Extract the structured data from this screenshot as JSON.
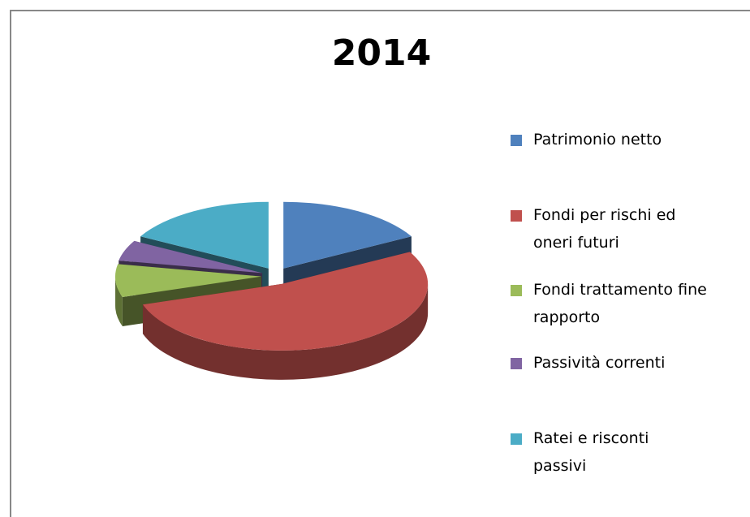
{
  "chart_data": {
    "type": "pie",
    "title": "2014",
    "categories": [
      "Patrimonio netto",
      "Fondi per rischi ed oneri futuri",
      "Fondi trattamento fine rapporto",
      "Passività correnti",
      "Ratei e risconti passivi"
    ],
    "values": [
      17,
      53,
      8,
      5,
      17
    ],
    "colors": [
      "#4f81bd",
      "#c0504d",
      "#9bbb59",
      "#8064a2",
      "#4bacc6"
    ],
    "legend": "right"
  }
}
